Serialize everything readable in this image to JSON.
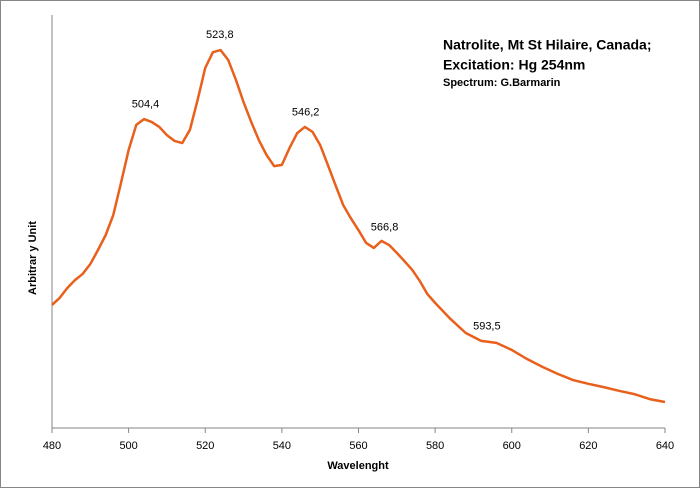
{
  "chart_data": {
    "type": "line",
    "title": "Natrolite, Mt St Hilaire, Canada;",
    "subtitle": "Excitation: Hg 254nm",
    "credit": "Spectrum: G.Barmarin",
    "x_label": "Wavelenght",
    "y_label": "Arbitrar y Unit",
    "xlim": [
      480,
      640
    ],
    "xticks": [
      480,
      500,
      520,
      540,
      560,
      580,
      600,
      620,
      640
    ],
    "ylim": [
      0,
      100
    ],
    "color": "#e8601c",
    "x": [
      480,
      482,
      484,
      486,
      488,
      490,
      492,
      494,
      496,
      498,
      500,
      502,
      504,
      506,
      508,
      510,
      512,
      514,
      516,
      518,
      520,
      522,
      524,
      526,
      528,
      530,
      532,
      534,
      536,
      538,
      540,
      542,
      544,
      546,
      548,
      550,
      552,
      554,
      556,
      558,
      560,
      562,
      564,
      566,
      568,
      570,
      572,
      574,
      576,
      578,
      580,
      584,
      588,
      592,
      596,
      600,
      604,
      608,
      612,
      616,
      620,
      624,
      628,
      632,
      636,
      640
    ],
    "values": [
      29.8,
      31.5,
      33.9,
      35.8,
      37.3,
      39.7,
      43.1,
      46.7,
      51.6,
      59.3,
      67.3,
      73.4,
      74.8,
      74.1,
      72.9,
      70.9,
      69.5,
      69.0,
      72.2,
      79.4,
      87.2,
      91.0,
      91.5,
      89.1,
      84.3,
      78.9,
      74.1,
      69.7,
      66.1,
      63.4,
      63.7,
      67.8,
      71.4,
      72.9,
      71.7,
      68.5,
      63.7,
      58.8,
      54.0,
      50.8,
      47.9,
      44.8,
      43.6,
      45.3,
      44.3,
      42.4,
      40.4,
      38.3,
      35.6,
      32.4,
      30.3,
      26.4,
      23.0,
      21.1,
      20.6,
      18.9,
      16.7,
      14.8,
      13.1,
      11.6,
      10.7,
      9.9,
      9.0,
      8.2,
      7.0,
      6.3
    ],
    "annotations": [
      {
        "value": 504.4,
        "label": "504,4"
      },
      {
        "value": 523.8,
        "label": "523,8"
      },
      {
        "value": 546.2,
        "label": "546,2"
      },
      {
        "value": 566.8,
        "label": "566,8"
      },
      {
        "value": 593.5,
        "label": "593,5"
      }
    ]
  }
}
